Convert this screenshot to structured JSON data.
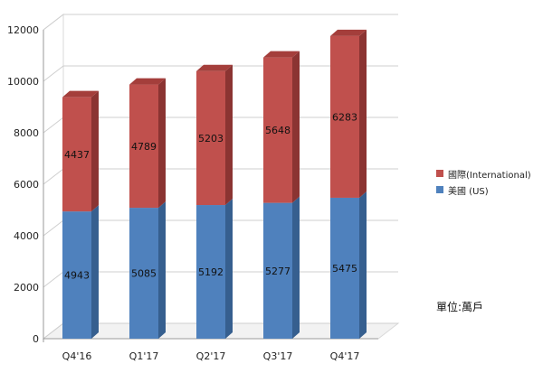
{
  "chart_data": {
    "type": "bar",
    "stacked": true,
    "three_d": true,
    "categories": [
      "Q4'16",
      "Q1'17",
      "Q2'17",
      "Q3'17",
      "Q4'17"
    ],
    "series": [
      {
        "name": "美國 (US)",
        "values": [
          4943,
          5085,
          5192,
          5277,
          5475
        ],
        "color": "#4F81BD"
      },
      {
        "name": "國際(International)",
        "values": [
          4437,
          4789,
          5203,
          5648,
          6283
        ],
        "color": "#C0504D"
      }
    ],
    "ylim": [
      0,
      12000
    ],
    "yticks": [
      0,
      2000,
      4000,
      6000,
      8000,
      10000,
      12000
    ],
    "grid": true,
    "legend_position": "right"
  },
  "legend": {
    "international": "國際(International)",
    "us": "美國 (US)"
  },
  "unit_label": "單位:萬戶"
}
